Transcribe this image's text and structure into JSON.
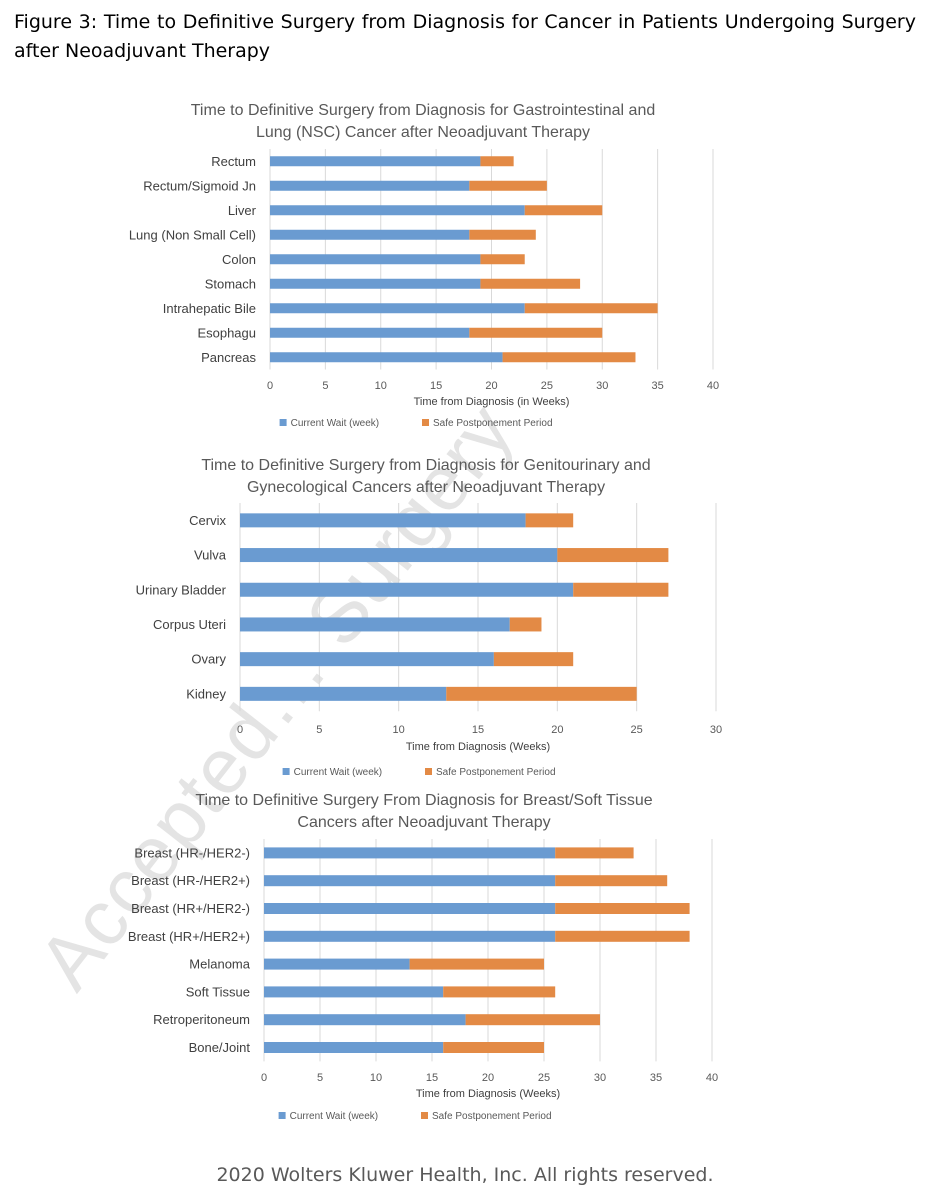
{
  "figure_title": "Figure 3: Time to Definitive Surgery from Diagnosis for Cancer in Patients Undergoing Surgery after Neoadjuvant Therapy",
  "watermark": "Accepted… Surgery",
  "footer": "2020 Wolters Kluwer Health, Inc. All rights reserved.",
  "colors": {
    "current": "#6a9bd1",
    "safe": "#e38a45",
    "grid": "#d9d9d9"
  },
  "chart_data": [
    {
      "type": "bar",
      "orientation": "horizontal",
      "stacked": true,
      "title": [
        "Time to Definitive Surgery from Diagnosis for Gastrointestinal and",
        "Lung (NSC) Cancer after Neoadjuvant Therapy"
      ],
      "xlabel": "Time from Diagnosis  (in Weeks)",
      "xlim": [
        0,
        40
      ],
      "xticks": [
        0,
        5,
        10,
        15,
        20,
        25,
        30,
        35,
        40
      ],
      "grid": true,
      "legend_position": "bottom",
      "categories": [
        "Rectum",
        "Rectum/Sigmoid Jn",
        "Liver",
        "Lung (Non Small Cell)",
        "Colon",
        "Stomach",
        "Intrahepatic Bile",
        "Esophagu",
        "Pancreas"
      ],
      "series": [
        {
          "name": "Current Wait (week)",
          "values": [
            19,
            18,
            23,
            18,
            19,
            19,
            23,
            18,
            21
          ]
        },
        {
          "name": "Safe Postponement Period",
          "values": [
            3,
            7,
            7,
            6,
            4,
            9,
            12,
            12,
            12
          ]
        }
      ]
    },
    {
      "type": "bar",
      "orientation": "horizontal",
      "stacked": true,
      "title": [
        "Time to Definitive Surgery from Diagnosis for Genitourinary and",
        "Gynecological Cancers after Neoadjuvant Therapy"
      ],
      "xlabel": "Time from Diagnosis (Weeks)",
      "xlim": [
        0,
        30
      ],
      "xticks": [
        0,
        5,
        10,
        15,
        20,
        25,
        30
      ],
      "grid": true,
      "legend_position": "bottom",
      "categories": [
        "Cervix",
        "Vulva",
        "Urinary Bladder",
        "Corpus Uteri",
        "Ovary",
        "Kidney"
      ],
      "series": [
        {
          "name": "Current Wait (week)",
          "values": [
            18,
            20,
            21,
            17,
            16,
            13
          ]
        },
        {
          "name": "Safe Postponement Period",
          "values": [
            3,
            7,
            6,
            2,
            5,
            12
          ]
        }
      ]
    },
    {
      "type": "bar",
      "orientation": "horizontal",
      "stacked": true,
      "title": [
        "Time to Definitive Surgery From Diagnosis for Breast/Soft Tissue",
        "Cancers after Neoadjuvant Therapy"
      ],
      "xlabel": "Time from Diagnosis (Weeks)",
      "xlim": [
        0,
        40
      ],
      "xticks": [
        0,
        5,
        10,
        15,
        20,
        25,
        30,
        35,
        40
      ],
      "grid": true,
      "legend_position": "bottom",
      "categories": [
        "Breast (HR-/HER2-)",
        "Breast (HR-/HER2+)",
        "Breast (HR+/HER2-)",
        "Breast (HR+/HER2+)",
        "Melanoma",
        "Soft Tissue",
        "Retroperitoneum",
        "Bone/Joint"
      ],
      "series": [
        {
          "name": "Current Wait (week)",
          "values": [
            26,
            26,
            26,
            26,
            13,
            16,
            18,
            16
          ]
        },
        {
          "name": "Safe Postponement Period",
          "values": [
            7,
            10,
            12,
            12,
            12,
            10,
            12,
            9
          ]
        }
      ]
    }
  ]
}
